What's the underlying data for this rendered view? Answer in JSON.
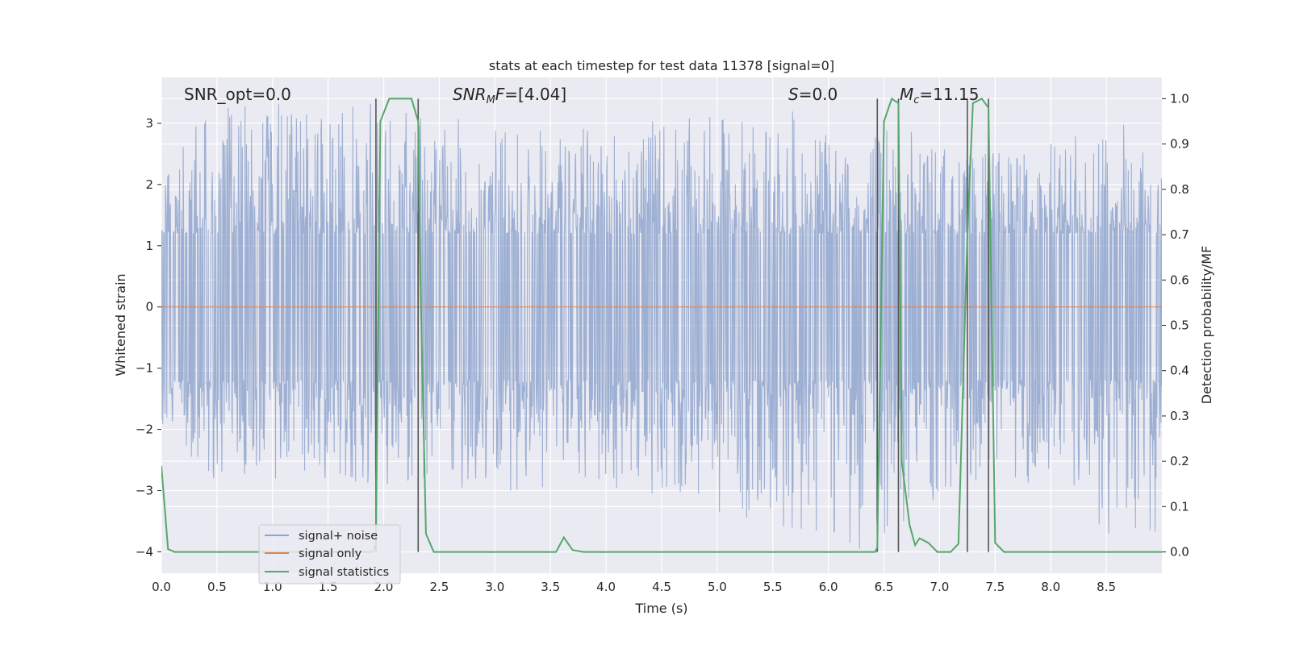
{
  "chart_data": {
    "type": "line",
    "title": "stats at each timestep for test data 11378 [signal=0]",
    "xlabel": "Time (s)",
    "ylabel": "Whitened strain",
    "y2label": "Detection probability/MF",
    "xlim": [
      0.0,
      9.0
    ],
    "ylim": [
      -4.35,
      3.75
    ],
    "y2lim": [
      -0.047,
      1.047
    ],
    "grid": true,
    "x_ticks": [
      "0.0",
      "0.5",
      "1.0",
      "1.5",
      "2.0",
      "2.5",
      "3.0",
      "3.5",
      "4.0",
      "4.5",
      "5.0",
      "5.5",
      "6.0",
      "6.5",
      "7.0",
      "7.5",
      "8.0",
      "8.5"
    ],
    "y_ticks": [
      "3",
      "2",
      "1",
      "0",
      "−1",
      "−2",
      "−3",
      "−4"
    ],
    "y2_ticks": [
      "1.0",
      "0.9",
      "0.8",
      "0.7",
      "0.6",
      "0.5",
      "0.4",
      "0.3",
      "0.2",
      "0.1",
      "0.0"
    ],
    "annotations": {
      "snr_opt": "SNR_opt=0.0",
      "snr_mf_sym": "SNR",
      "snr_mf_sub": "M",
      "snr_mf_sym2": "F",
      "snr_mf_val": "=[4.04]",
      "s_sym": "S",
      "s_val": "=0.0",
      "mc_sym": "M",
      "mc_sub": "c",
      "mc_val": "=11.15"
    },
    "legend": {
      "placement": "lower-left",
      "entries": [
        "signal+ noise",
        "signal only",
        "signal statistics"
      ]
    },
    "colors": {
      "noise": "#8fa4cc",
      "signal": "#dd8452",
      "stats": "#55a868",
      "vlines": "#555555",
      "axes_bg": "#eaeaf2"
    },
    "vertical_lines_x": [
      1.93,
      2.31,
      6.44,
      6.63,
      7.25,
      7.44
    ],
    "series": [
      {
        "name": "signal+ noise",
        "noise_envelope": [
          [
            0.0,
            2.1
          ],
          [
            0.38,
            3.25
          ],
          [
            0.93,
            3.4
          ],
          [
            1.33,
            3.3
          ],
          [
            1.77,
            3.4
          ],
          [
            2.9,
            3.0
          ],
          [
            3.62,
            2.95
          ],
          [
            5.7,
            3.2
          ],
          [
            6.2,
            2.5
          ],
          [
            6.55,
            3.05
          ],
          [
            7.25,
            2.5
          ],
          [
            8.0,
            2.7
          ],
          [
            8.9,
            3.2
          ],
          [
            8.95,
            2.2
          ]
        ],
        "noise_min_envelope": [
          [
            0.0,
            -2.0
          ],
          [
            0.45,
            -2.85
          ],
          [
            1.33,
            -2.8
          ],
          [
            2.6,
            -3.0
          ],
          [
            4.3,
            -3.0
          ],
          [
            5.1,
            -3.4
          ],
          [
            6.3,
            -4.0
          ],
          [
            7.55,
            -2.6
          ],
          [
            8.18,
            -3.6
          ],
          [
            8.7,
            -3.85
          ]
        ]
      },
      {
        "name": "signal only",
        "x": [
          0.0,
          9.0
        ],
        "y": [
          0.0,
          0.0
        ]
      },
      {
        "name": "signal statistics",
        "x": [
          0.0,
          0.06,
          0.12,
          1.9,
          1.93,
          1.97,
          2.05,
          2.12,
          2.25,
          2.31,
          2.33,
          2.38,
          2.45,
          3.55,
          3.62,
          3.7,
          3.8,
          6.42,
          6.44,
          6.5,
          6.57,
          6.63,
          6.66,
          6.73,
          6.78,
          6.82,
          6.9,
          6.98,
          7.1,
          7.17,
          7.25,
          7.3,
          7.38,
          7.44,
          7.5,
          7.58,
          7.65,
          9.0
        ],
        "y": [
          0.19,
          0.006,
          0.0,
          0.0,
          0.02,
          0.95,
          1.0,
          1.0,
          1.0,
          0.95,
          0.6,
          0.04,
          0.0,
          0.0,
          0.032,
          0.004,
          0.0,
          0.0,
          0.01,
          0.95,
          1.0,
          0.99,
          0.2,
          0.06,
          0.015,
          0.03,
          0.02,
          0.0,
          0.0,
          0.018,
          0.7,
          0.99,
          1.0,
          0.98,
          0.02,
          0.0,
          0.0,
          0.0
        ]
      }
    ]
  }
}
